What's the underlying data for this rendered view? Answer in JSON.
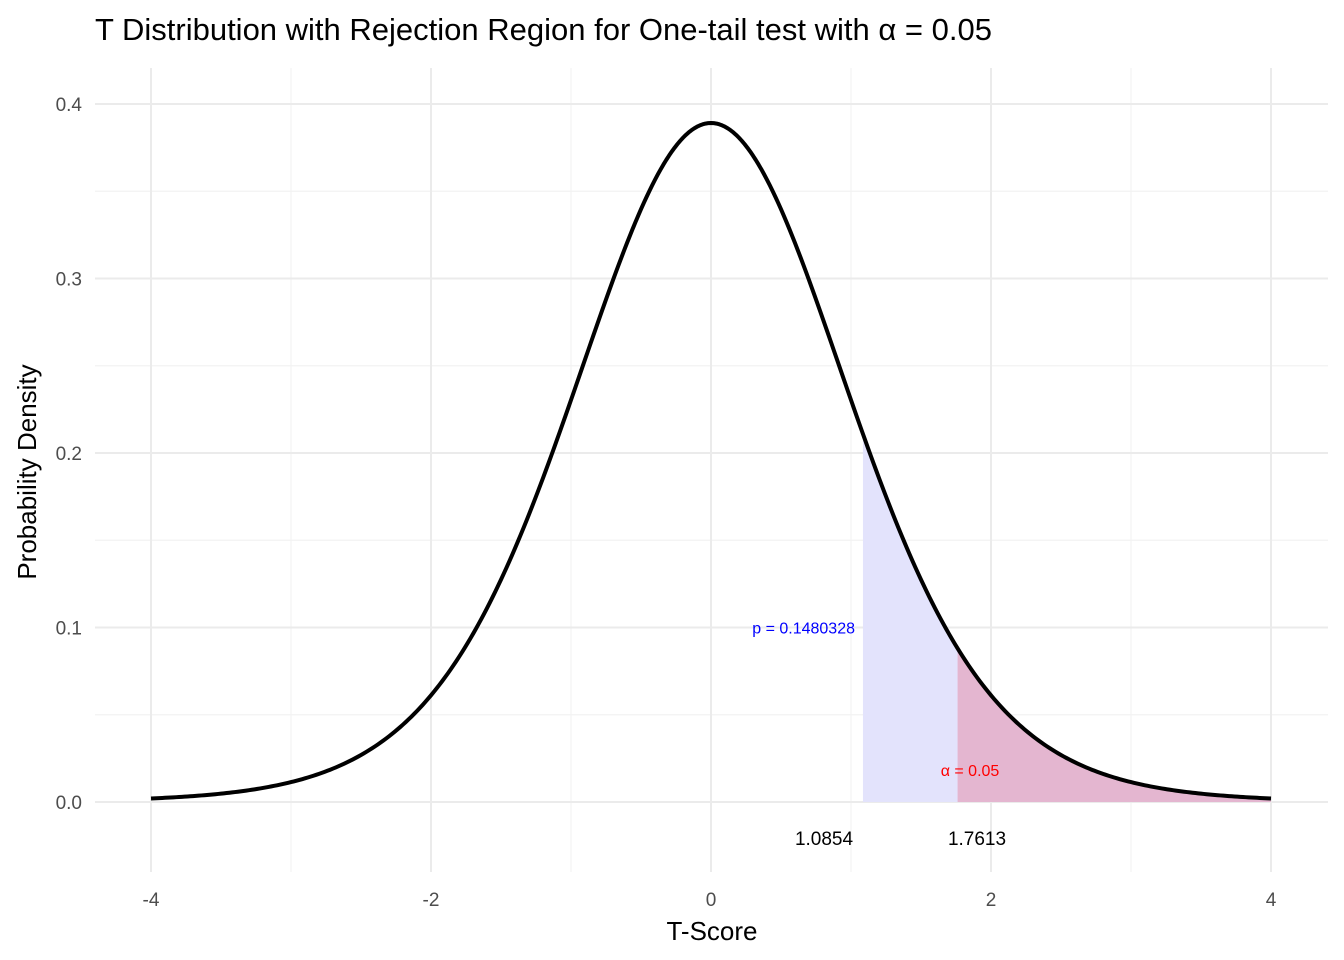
{
  "chart_data": {
    "type": "area",
    "title": "T Distribution with Rejection Region for One-tail test with α = 0.05",
    "xlabel": "T-Score",
    "ylabel": "Probability Density",
    "xlim": [
      -4,
      4
    ],
    "ylim": [
      0,
      0.4
    ],
    "x_ticks": [
      -4,
      -2,
      0,
      2,
      4
    ],
    "x_tick_labels": [
      "-4",
      "-2",
      "0",
      "2",
      "4"
    ],
    "y_ticks": [
      0,
      0.1,
      0.2,
      0.3,
      0.4
    ],
    "y_tick_labels": [
      "0.0",
      "0.1",
      "0.2",
      "0.3",
      "0.4"
    ],
    "grid": true,
    "curve": {
      "x": [
        -4.0,
        -3.5,
        -3.0,
        -2.75,
        -2.5,
        -2.25,
        -2.0,
        -1.75,
        -1.5,
        -1.25,
        -1.0,
        -0.75,
        -0.5,
        -0.25,
        0.0,
        0.25,
        0.5,
        0.75,
        1.0,
        1.0854,
        1.25,
        1.5,
        1.7613,
        2.0,
        2.25,
        2.5,
        2.75,
        3.0,
        3.5,
        4.0
      ],
      "y": [
        0.0001,
        0.0009,
        0.0044,
        0.0091,
        0.0175,
        0.0317,
        0.054,
        0.0863,
        0.1295,
        0.1826,
        0.242,
        0.3011,
        0.3521,
        0.3867,
        0.3989,
        0.3867,
        0.3521,
        0.3011,
        0.242,
        0.2215,
        0.1826,
        0.1295,
        0.0844,
        0.054,
        0.0317,
        0.0175,
        0.0091,
        0.0044,
        0.0009,
        0.0001
      ],
      "color": "#000000"
    },
    "regions": [
      {
        "name": "p-value region",
        "from": 1.0854,
        "to": 4.0,
        "color": "#e3e3fc"
      },
      {
        "name": "rejection region",
        "from": 1.7613,
        "to": 4.0,
        "color": "#e4b6d0"
      }
    ],
    "critical_labels": [
      "1.0854",
      "1.7613"
    ],
    "critical_values": [
      1.0854,
      1.7613
    ],
    "annotations": [
      {
        "text": "p = 0.1480328",
        "x": 0.55,
        "y": 0.1,
        "color": "#0000ff"
      },
      {
        "text": "α = 0.05",
        "x": 1.85,
        "y": 0.018,
        "color": "#ff0000"
      }
    ]
  }
}
